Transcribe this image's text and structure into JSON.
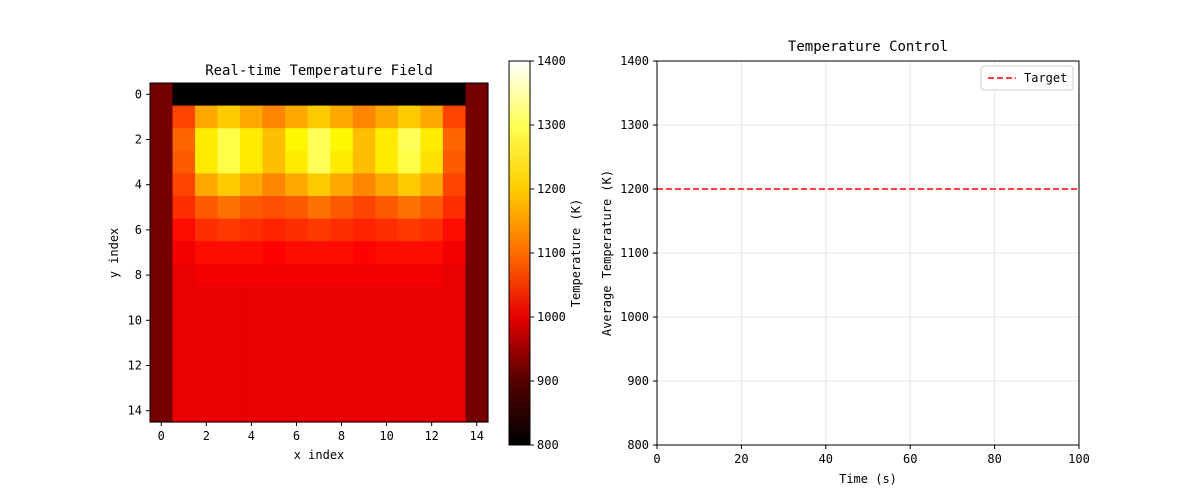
{
  "chart_data": [
    {
      "type": "heatmap",
      "title": "Real-time Temperature Field",
      "xlabel": "x index",
      "ylabel": "y index",
      "colorbar_label": "Temperature (K)",
      "colormap": "hot",
      "vmin": 800,
      "vmax": 1400,
      "colorbar_ticks": [
        800,
        900,
        1000,
        1100,
        1200,
        1300,
        1400
      ],
      "x_ticks": [
        0,
        2,
        4,
        6,
        8,
        10,
        12,
        14
      ],
      "y_ticks": [
        0,
        2,
        4,
        6,
        8,
        10,
        12,
        14
      ],
      "grid": false,
      "values": [
        [
          900,
          800,
          800,
          800,
          800,
          800,
          800,
          800,
          800,
          800,
          800,
          800,
          800,
          800,
          900
        ],
        [
          900,
          1080,
          1170,
          1200,
          1170,
          1140,
          1170,
          1200,
          1170,
          1140,
          1170,
          1200,
          1170,
          1080,
          900
        ],
        [
          900,
          1110,
          1230,
          1290,
          1230,
          1190,
          1240,
          1300,
          1240,
          1190,
          1230,
          1300,
          1230,
          1110,
          900
        ],
        [
          900,
          1100,
          1230,
          1290,
          1230,
          1190,
          1230,
          1300,
          1230,
          1190,
          1230,
          1290,
          1220,
          1100,
          900
        ],
        [
          900,
          1080,
          1170,
          1200,
          1170,
          1140,
          1170,
          1200,
          1170,
          1140,
          1170,
          1200,
          1170,
          1080,
          900
        ],
        [
          900,
          1060,
          1100,
          1120,
          1100,
          1090,
          1100,
          1120,
          1100,
          1080,
          1100,
          1120,
          1100,
          1060,
          900
        ],
        [
          900,
          1030,
          1060,
          1070,
          1060,
          1050,
          1060,
          1070,
          1060,
          1050,
          1060,
          1070,
          1060,
          1030,
          900
        ],
        [
          900,
          1010,
          1030,
          1030,
          1030,
          1020,
          1030,
          1030,
          1030,
          1020,
          1030,
          1030,
          1030,
          1010,
          900
        ],
        [
          900,
          1000,
          1010,
          1010,
          1010,
          1010,
          1010,
          1010,
          1010,
          1010,
          1010,
          1010,
          1010,
          1000,
          900
        ],
        [
          900,
          1000,
          1000,
          1000,
          1000,
          1000,
          1000,
          1000,
          1000,
          1000,
          1000,
          1000,
          1000,
          1000,
          900
        ],
        [
          900,
          1000,
          1000,
          1000,
          1000,
          1000,
          1000,
          1000,
          1000,
          1000,
          1000,
          1000,
          1000,
          1000,
          900
        ],
        [
          900,
          1000,
          1000,
          1000,
          1000,
          1000,
          1000,
          1000,
          1000,
          1000,
          1000,
          1000,
          1000,
          1000,
          900
        ],
        [
          900,
          1000,
          1000,
          1000,
          1000,
          1000,
          1000,
          1000,
          1000,
          1000,
          1000,
          1000,
          1000,
          1000,
          900
        ],
        [
          900,
          1000,
          1000,
          1000,
          1000,
          1000,
          1000,
          1000,
          1000,
          1000,
          1000,
          1000,
          1000,
          1000,
          900
        ],
        [
          900,
          1000,
          1000,
          1000,
          1000,
          1000,
          1000,
          1000,
          1000,
          1000,
          1000,
          1000,
          1000,
          1000,
          900
        ]
      ]
    },
    {
      "type": "line",
      "title": "Temperature Control",
      "xlabel": "Time (s)",
      "ylabel": "Average Temperature (K)",
      "xlim": [
        0,
        100
      ],
      "ylim": [
        800,
        1400
      ],
      "x_ticks": [
        0,
        20,
        40,
        60,
        80,
        100
      ],
      "y_ticks": [
        800,
        900,
        1000,
        1100,
        1200,
        1300,
        1400
      ],
      "grid": true,
      "legend_position": "top-right",
      "series": [
        {
          "name": "Target",
          "type": "hline",
          "y": 1200,
          "color": "#ff0000",
          "style": "dashed"
        }
      ]
    }
  ]
}
